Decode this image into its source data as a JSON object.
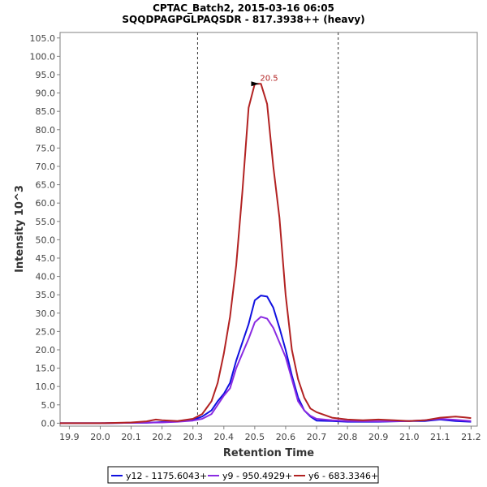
{
  "chart_data": {
    "type": "line",
    "title": "CPTAC_Batch2, 2015-03-16 06:05",
    "subtitle": "SQQDPAGPGLPAQSDR - 817.3938++ (heavy)",
    "xlabel": "Retention Time",
    "ylabel": "Intensity 10^3",
    "xlim": [
      19.87,
      21.22
    ],
    "ylim": [
      -0.8,
      106.5
    ],
    "x_ticks": [
      "19.9",
      "20.0",
      "20.1",
      "20.2",
      "20.3",
      "20.4",
      "20.5",
      "20.6",
      "20.7",
      "20.8",
      "20.9",
      "21.0",
      "21.1",
      "21.2"
    ],
    "y_ticks": [
      "0.0",
      "5.0",
      "10.0",
      "15.0",
      "20.0",
      "25.0",
      "30.0",
      "35.0",
      "40.0",
      "45.0",
      "50.0",
      "55.0",
      "60.0",
      "65.0",
      "70.0",
      "75.0",
      "80.0",
      "85.0",
      "90.0",
      "95.0",
      "100.0",
      "105.0"
    ],
    "vlines": [
      20.315,
      20.77
    ],
    "annotation": {
      "text": "20.5",
      "x": 20.52,
      "y": 92.5,
      "color": "#b22222"
    },
    "legend_position": "bottom",
    "series": [
      {
        "name": "y12 - 1175.6043+",
        "color": "#1010e0",
        "x": [
          19.87,
          19.9,
          20.0,
          20.1,
          20.15,
          20.2,
          20.25,
          20.3,
          20.33,
          20.36,
          20.38,
          20.4,
          20.42,
          20.44,
          20.46,
          20.48,
          20.5,
          20.52,
          20.54,
          20.56,
          20.58,
          20.6,
          20.62,
          20.64,
          20.66,
          20.68,
          20.7,
          20.75,
          20.8,
          20.9,
          21.0,
          21.05,
          21.1,
          21.15,
          21.2
        ],
        "values": [
          0,
          0,
          0,
          0.1,
          0.1,
          0.3,
          0.5,
          0.9,
          1.8,
          3.5,
          6,
          8,
          11,
          17,
          22,
          27,
          33.5,
          34.8,
          34.5,
          31.5,
          26,
          20,
          13,
          7,
          3.5,
          1.8,
          0.7,
          0.6,
          0.4,
          0.4,
          0.6,
          0.6,
          1.0,
          0.6,
          0.4
        ]
      },
      {
        "name": "y9 - 950.4929+",
        "color": "#8a2be2",
        "x": [
          19.87,
          19.9,
          20.0,
          20.1,
          20.2,
          20.25,
          20.3,
          20.33,
          20.36,
          20.38,
          20.4,
          20.42,
          20.44,
          20.46,
          20.48,
          20.5,
          20.52,
          20.54,
          20.56,
          20.58,
          20.6,
          20.62,
          20.64,
          20.66,
          20.68,
          20.7,
          20.75,
          20.8,
          20.9,
          21.0,
          21.05,
          21.1,
          21.15,
          21.2
        ],
        "values": [
          0,
          0,
          0,
          0.1,
          0.2,
          0.4,
          0.7,
          1.2,
          2.5,
          5,
          7.5,
          9.5,
          15,
          19,
          23,
          27.5,
          29,
          28.5,
          26,
          22,
          18,
          12,
          6,
          3.5,
          2,
          1.2,
          0.8,
          0.6,
          0.5,
          0.6,
          0.8,
          1.2,
          0.9,
          0.6
        ]
      },
      {
        "name": "y6 - 683.3346+",
        "color": "#b22222",
        "x": [
          19.87,
          19.9,
          20.0,
          20.1,
          20.15,
          20.18,
          20.2,
          20.25,
          20.3,
          20.33,
          20.36,
          20.38,
          20.4,
          20.42,
          20.44,
          20.46,
          20.48,
          20.5,
          20.52,
          20.54,
          20.56,
          20.58,
          20.6,
          20.62,
          20.64,
          20.66,
          20.68,
          20.7,
          20.75,
          20.8,
          20.85,
          20.9,
          20.95,
          21.0,
          21.05,
          21.1,
          21.15,
          21.18,
          21.2
        ],
        "values": [
          0,
          0,
          0,
          0.2,
          0.5,
          1.0,
          0.8,
          0.6,
          1.2,
          2.5,
          6,
          11,
          19,
          29,
          43,
          63,
          86,
          92.5,
          92.5,
          87,
          70,
          56,
          35,
          20,
          12,
          7,
          4,
          3,
          1.5,
          1.0,
          0.8,
          1.0,
          0.8,
          0.6,
          0.8,
          1.5,
          1.8,
          1.6,
          1.4
        ]
      }
    ]
  }
}
